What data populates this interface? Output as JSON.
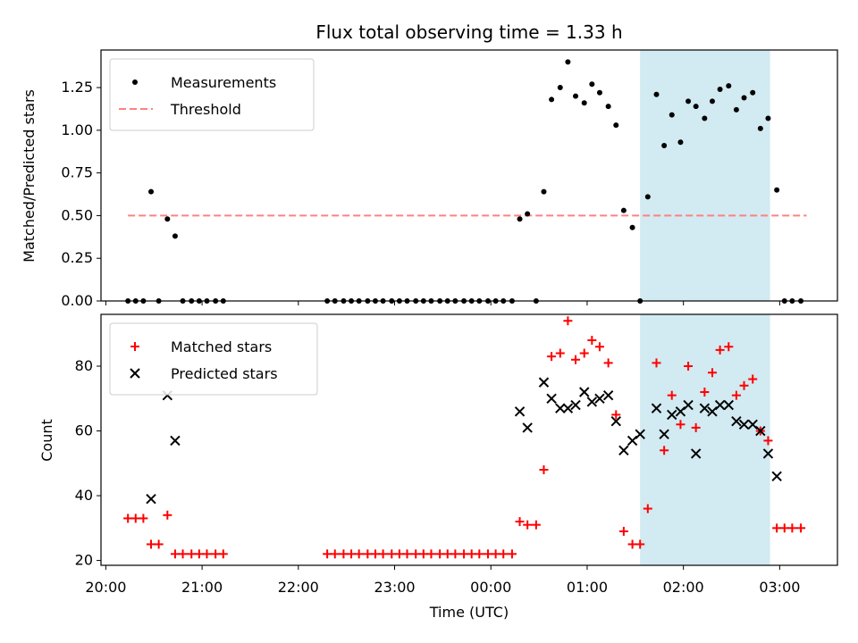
{
  "chart_data": [
    {
      "type": "scatter",
      "title": "Flux total observing time = 1.33 h",
      "xlabel": "",
      "ylabel": "Matched/Predicted stars",
      "xlim": [
        -0.05,
        7.6
      ],
      "ylim": [
        0,
        1.47
      ],
      "yticks": [
        0,
        0.25,
        0.5,
        0.75,
        1.0,
        1.25
      ],
      "ytick_labels": [
        "0.00",
        "0.25",
        "0.50",
        "0.75",
        "1.00",
        "1.25"
      ],
      "xticks": [
        0,
        1,
        2,
        3,
        4,
        5,
        6,
        7
      ],
      "shaded_region": {
        "x0": 5.55,
        "x1": 6.9,
        "color": "#add8e6"
      },
      "threshold": {
        "name": "Threshold",
        "value": 0.5,
        "x0": 0.23,
        "x1": 7.28,
        "color": "#ff8080"
      },
      "legend_position": "top-left",
      "series": [
        {
          "name": "Measurements",
          "color": "#000000",
          "marker": "dot",
          "points": [
            [
              0.23,
              0
            ],
            [
              0.31,
              0
            ],
            [
              0.39,
              0
            ],
            [
              0.47,
              0.64
            ],
            [
              0.55,
              0
            ],
            [
              0.64,
              0.48
            ],
            [
              0.72,
              0.38
            ],
            [
              0.8,
              0
            ],
            [
              0.89,
              0
            ],
            [
              0.97,
              0
            ],
            [
              1.05,
              0
            ],
            [
              1.14,
              0
            ],
            [
              1.22,
              0
            ],
            [
              2.3,
              0
            ],
            [
              2.38,
              0
            ],
            [
              2.47,
              0
            ],
            [
              2.55,
              0
            ],
            [
              2.63,
              0
            ],
            [
              2.72,
              0
            ],
            [
              2.8,
              0
            ],
            [
              2.88,
              0
            ],
            [
              2.97,
              0
            ],
            [
              3.05,
              0
            ],
            [
              3.13,
              0
            ],
            [
              3.22,
              0
            ],
            [
              3.3,
              0
            ],
            [
              3.38,
              0
            ],
            [
              3.47,
              0
            ],
            [
              3.55,
              0
            ],
            [
              3.63,
              0
            ],
            [
              3.72,
              0
            ],
            [
              3.8,
              0
            ],
            [
              3.88,
              0
            ],
            [
              3.97,
              0
            ],
            [
              4.05,
              0
            ],
            [
              4.13,
              0
            ],
            [
              4.22,
              0
            ],
            [
              4.3,
              0.48
            ],
            [
              4.38,
              0.51
            ],
            [
              4.47,
              0
            ],
            [
              4.55,
              0.64
            ],
            [
              4.63,
              1.18
            ],
            [
              4.72,
              1.25
            ],
            [
              4.8,
              1.4
            ],
            [
              4.88,
              1.2
            ],
            [
              4.97,
              1.16
            ],
            [
              5.05,
              1.27
            ],
            [
              5.13,
              1.22
            ],
            [
              5.22,
              1.14
            ],
            [
              5.3,
              1.03
            ],
            [
              5.38,
              0.53
            ],
            [
              5.47,
              0.43
            ],
            [
              5.55,
              0
            ],
            [
              5.63,
              0.61
            ],
            [
              5.72,
              1.21
            ],
            [
              5.8,
              0.91
            ],
            [
              5.88,
              1.09
            ],
            [
              5.97,
              0.93
            ],
            [
              6.05,
              1.17
            ],
            [
              6.13,
              1.14
            ],
            [
              6.22,
              1.07
            ],
            [
              6.3,
              1.17
            ],
            [
              6.38,
              1.24
            ],
            [
              6.47,
              1.26
            ],
            [
              6.55,
              1.12
            ],
            [
              6.63,
              1.19
            ],
            [
              6.72,
              1.22
            ],
            [
              6.8,
              1.01
            ],
            [
              6.88,
              1.07
            ],
            [
              6.97,
              0.65
            ],
            [
              7.05,
              0
            ],
            [
              7.13,
              0
            ],
            [
              7.22,
              0
            ]
          ]
        }
      ]
    },
    {
      "type": "scatter",
      "title": "",
      "xlabel": "Time (UTC)",
      "ylabel": "Count",
      "xlim": [
        -0.05,
        7.6
      ],
      "ylim": [
        18.5,
        96
      ],
      "yticks": [
        20,
        40,
        60,
        80
      ],
      "ytick_labels": [
        "20",
        "40",
        "60",
        "80"
      ],
      "xticks": [
        0,
        1,
        2,
        3,
        4,
        5,
        6,
        7
      ],
      "xtick_labels": [
        "20:00",
        "21:00",
        "22:00",
        "23:00",
        "00:00",
        "01:00",
        "02:00",
        "03:00"
      ],
      "shaded_region": {
        "x0": 5.55,
        "x1": 6.9,
        "color": "#add8e6"
      },
      "legend_position": "top-left",
      "series": [
        {
          "name": "Matched stars",
          "color": "#ff0000",
          "marker": "plus",
          "points": [
            [
              0.23,
              33
            ],
            [
              0.31,
              33
            ],
            [
              0.39,
              33
            ],
            [
              0.47,
              25
            ],
            [
              0.55,
              25
            ],
            [
              0.64,
              34
            ],
            [
              0.72,
              22
            ],
            [
              0.8,
              22
            ],
            [
              0.89,
              22
            ],
            [
              0.97,
              22
            ],
            [
              1.05,
              22
            ],
            [
              1.14,
              22
            ],
            [
              1.22,
              22
            ],
            [
              2.3,
              22
            ],
            [
              2.38,
              22
            ],
            [
              2.47,
              22
            ],
            [
              2.55,
              22
            ],
            [
              2.63,
              22
            ],
            [
              2.72,
              22
            ],
            [
              2.8,
              22
            ],
            [
              2.88,
              22
            ],
            [
              2.97,
              22
            ],
            [
              3.05,
              22
            ],
            [
              3.13,
              22
            ],
            [
              3.22,
              22
            ],
            [
              3.3,
              22
            ],
            [
              3.38,
              22
            ],
            [
              3.47,
              22
            ],
            [
              3.55,
              22
            ],
            [
              3.63,
              22
            ],
            [
              3.72,
              22
            ],
            [
              3.8,
              22
            ],
            [
              3.88,
              22
            ],
            [
              3.97,
              22
            ],
            [
              4.05,
              22
            ],
            [
              4.13,
              22
            ],
            [
              4.22,
              22
            ],
            [
              4.3,
              32
            ],
            [
              4.38,
              31
            ],
            [
              4.47,
              31
            ],
            [
              4.55,
              48
            ],
            [
              4.63,
              83
            ],
            [
              4.72,
              84
            ],
            [
              4.8,
              94
            ],
            [
              4.88,
              82
            ],
            [
              4.97,
              84
            ],
            [
              5.05,
              88
            ],
            [
              5.13,
              86
            ],
            [
              5.22,
              81
            ],
            [
              5.3,
              65
            ],
            [
              5.38,
              29
            ],
            [
              5.47,
              25
            ],
            [
              5.55,
              25
            ],
            [
              5.63,
              36
            ],
            [
              5.72,
              81
            ],
            [
              5.8,
              54
            ],
            [
              5.88,
              71
            ],
            [
              5.97,
              62
            ],
            [
              6.05,
              80
            ],
            [
              6.13,
              61
            ],
            [
              6.22,
              72
            ],
            [
              6.3,
              78
            ],
            [
              6.38,
              85
            ],
            [
              6.47,
              86
            ],
            [
              6.55,
              71
            ],
            [
              6.63,
              74
            ],
            [
              6.72,
              76
            ],
            [
              6.8,
              60
            ],
            [
              6.88,
              57
            ],
            [
              6.97,
              30
            ],
            [
              7.05,
              30
            ],
            [
              7.13,
              30
            ],
            [
              7.22,
              30
            ]
          ]
        },
        {
          "name": "Predicted stars",
          "color": "#000000",
          "marker": "x",
          "points": [
            [
              0.47,
              39
            ],
            [
              0.64,
              71
            ],
            [
              0.72,
              57
            ],
            [
              4.3,
              66
            ],
            [
              4.38,
              61
            ],
            [
              4.55,
              75
            ],
            [
              4.63,
              70
            ],
            [
              4.72,
              67
            ],
            [
              4.8,
              67
            ],
            [
              4.88,
              68
            ],
            [
              4.97,
              72
            ],
            [
              5.05,
              69
            ],
            [
              5.13,
              70
            ],
            [
              5.22,
              71
            ],
            [
              5.3,
              63
            ],
            [
              5.38,
              54
            ],
            [
              5.47,
              57
            ],
            [
              5.55,
              59
            ],
            [
              5.72,
              67
            ],
            [
              5.8,
              59
            ],
            [
              5.88,
              65
            ],
            [
              5.97,
              66
            ],
            [
              6.05,
              68
            ],
            [
              6.13,
              53
            ],
            [
              6.22,
              67
            ],
            [
              6.3,
              66
            ],
            [
              6.38,
              68
            ],
            [
              6.47,
              68
            ],
            [
              6.55,
              63
            ],
            [
              6.63,
              62
            ],
            [
              6.72,
              62
            ],
            [
              6.8,
              60
            ],
            [
              6.88,
              53
            ],
            [
              6.97,
              46
            ]
          ]
        }
      ]
    }
  ]
}
